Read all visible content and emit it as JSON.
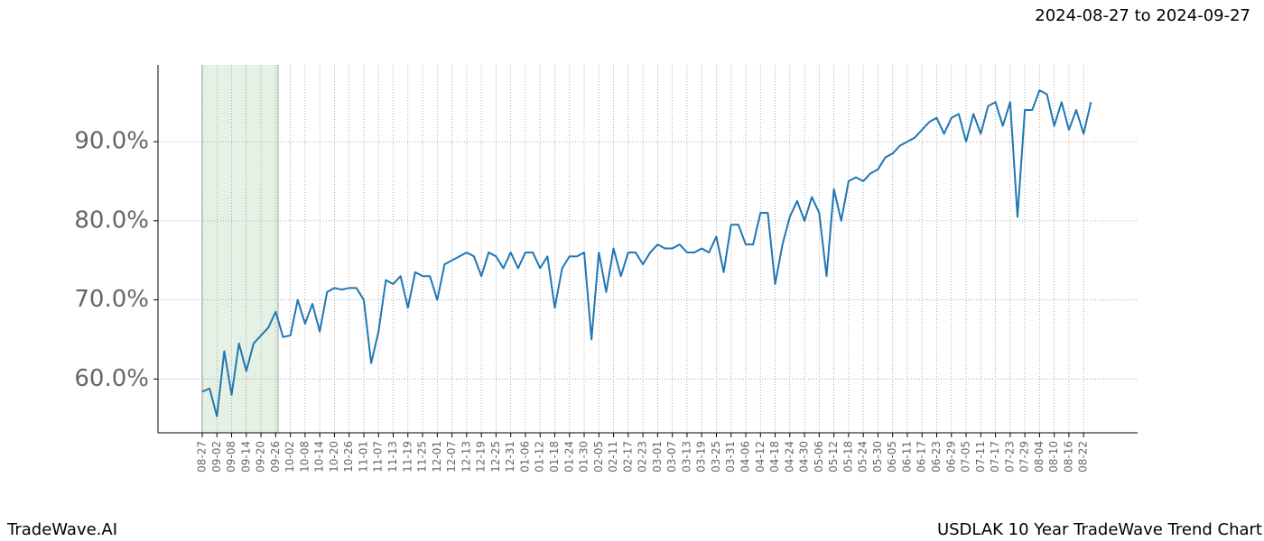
{
  "header": {
    "date_range": "2024-08-27 to 2024-09-27"
  },
  "footer": {
    "brand": "TradeWave.AI",
    "caption": "USDLAK 10 Year TradeWave Trend Chart"
  },
  "chart_data": {
    "type": "line",
    "categories": [
      "08-27",
      null,
      "09-02",
      null,
      "09-08",
      null,
      "09-14",
      null,
      "09-20",
      null,
      "09-26",
      null,
      "10-02",
      null,
      "10-08",
      null,
      "10-14",
      null,
      "10-20",
      null,
      "10-26",
      null,
      "11-01",
      null,
      "11-07",
      null,
      "11-13",
      null,
      "11-19",
      null,
      "11-25",
      null,
      "12-01",
      null,
      "12-07",
      null,
      "12-13",
      null,
      "12-19",
      null,
      "12-25",
      null,
      "12-31",
      null,
      "01-06",
      null,
      "01-12",
      null,
      "01-18",
      null,
      "01-24",
      null,
      "01-30",
      null,
      "02-05",
      null,
      "02-11",
      null,
      "02-17",
      null,
      "02-23",
      null,
      "03-01",
      null,
      "03-07",
      null,
      "03-13",
      null,
      "03-19",
      null,
      "03-25",
      null,
      "03-31",
      null,
      "04-06",
      null,
      "04-12",
      null,
      "04-18",
      null,
      "04-24",
      null,
      "04-30",
      null,
      "05-06",
      null,
      "05-12",
      null,
      "05-18",
      null,
      "05-24",
      null,
      "05-30",
      null,
      "06-05",
      null,
      "06-11",
      null,
      "06-17",
      null,
      "06-23",
      null,
      "06-29",
      null,
      "07-05",
      null,
      "07-11",
      null,
      "07-17",
      null,
      "07-23",
      null,
      "07-29",
      null,
      "08-04",
      null,
      "08-10",
      null,
      "08-16",
      null,
      "08-22",
      null
    ],
    "values": [
      58.4,
      58.8,
      55.3,
      63.5,
      58,
      64.5,
      61,
      64.5,
      65.5,
      66.5,
      68.5,
      65.3,
      65.5,
      70,
      67,
      69.5,
      66,
      71,
      71.5,
      71.3,
      71.5,
      71.5,
      70,
      62,
      66,
      72.5,
      72,
      73,
      69,
      73.5,
      73,
      73,
      70,
      74.5,
      75,
      75.5,
      76,
      75.5,
      73,
      76,
      75.5,
      74,
      76,
      74,
      76,
      76,
      74,
      75.5,
      69,
      74,
      75.5,
      75.5,
      76,
      65,
      76,
      71,
      76.5,
      73,
      76,
      76,
      74.5,
      76,
      77,
      76.5,
      76.5,
      77,
      76,
      76,
      76.5,
      76,
      78,
      73.5,
      79.5,
      79.5,
      77,
      77,
      81,
      81,
      72,
      77,
      80.5,
      82.5,
      80,
      83,
      81,
      73,
      84,
      80,
      85,
      85.5,
      85,
      86,
      86.5,
      88,
      88.5,
      89.5,
      90,
      90.5,
      91.5,
      92.5,
      93,
      91,
      93,
      93.5,
      90,
      93.5,
      91,
      94.5,
      95,
      92,
      95,
      80.5,
      94,
      94,
      96.5,
      96,
      92,
      95,
      91.5,
      94,
      91,
      95
    ],
    "color": "#1f77b4",
    "ylim": [
      53.2,
      99.7
    ],
    "yticks": [
      {
        "value": 60,
        "label": "60.0%"
      },
      {
        "value": 70,
        "label": "70.0%"
      },
      {
        "value": 80,
        "label": "80.0%"
      },
      {
        "value": 90,
        "label": "90.0%"
      }
    ],
    "grid": true
  }
}
